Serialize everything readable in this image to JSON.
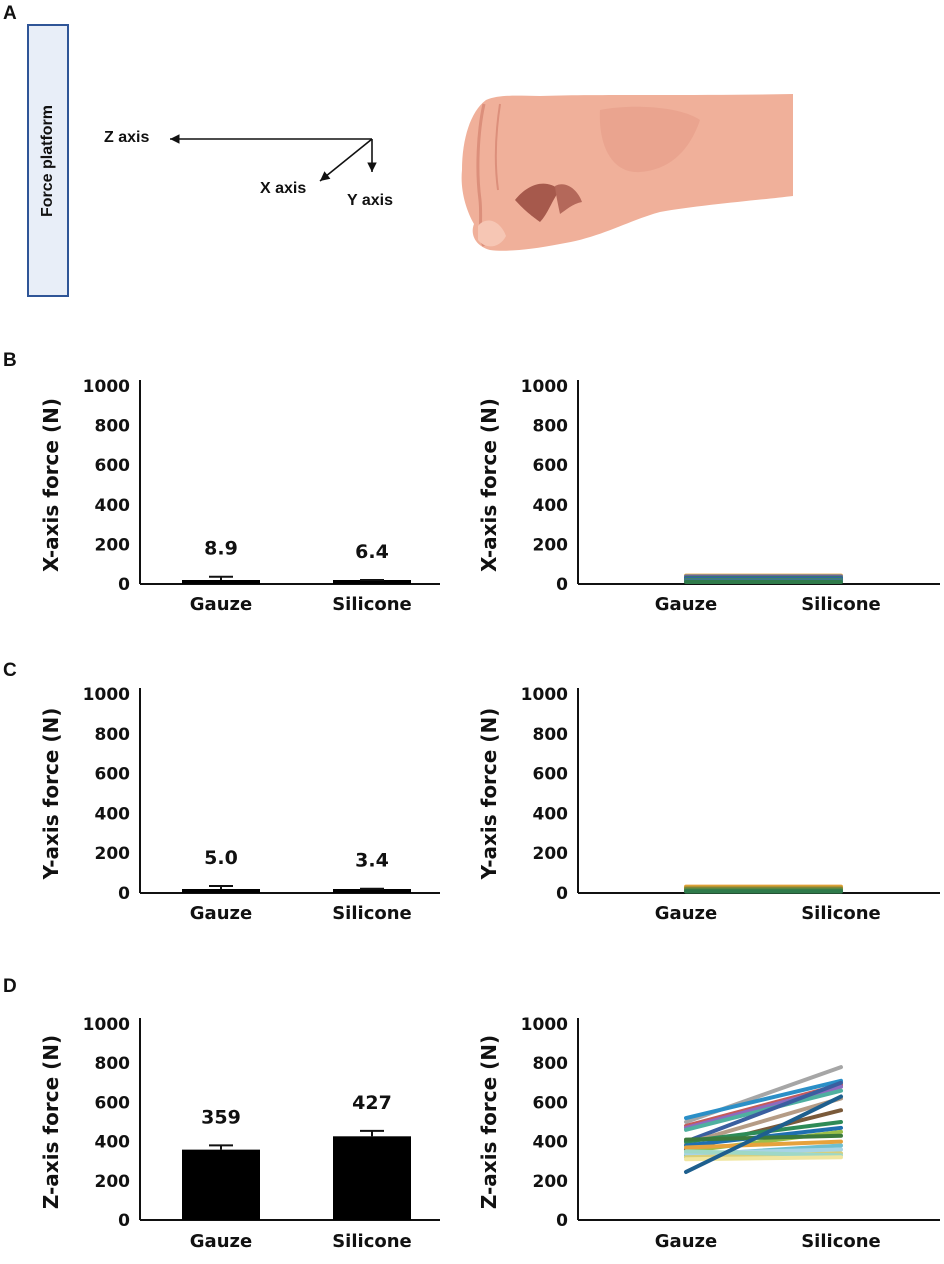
{
  "panels": {
    "a": "A",
    "b": "B",
    "c": "C",
    "d": "D"
  },
  "diagram": {
    "platform_label": "Force platform",
    "z_axis": "Z axis",
    "x_axis": "X axis",
    "y_axis": "Y axis"
  },
  "colors": {
    "bar": "#000000",
    "skin": "#f0b09a",
    "skin_dark": "#e59a86",
    "platform_border": "#2f5597",
    "platform_fill": "#e8eef8"
  },
  "chart_data": [
    {
      "id": "B-left",
      "type": "bar",
      "categories": [
        "Gauze",
        "Silicone"
      ],
      "values": [
        8.9,
        6.4
      ],
      "errors": [
        28,
        14
      ],
      "data_labels": [
        "8.9",
        "6.4"
      ],
      "ylabel": "X-axis force (N)",
      "ylim": [
        0,
        1000
      ],
      "yticks": [
        "0",
        "200",
        "400",
        "600",
        "800",
        "1000"
      ]
    },
    {
      "id": "B-right",
      "type": "line",
      "categories": [
        "Gauze",
        "Silicone"
      ],
      "series": [
        {
          "values": [
            42,
            42
          ],
          "color": "#e6a23c"
        },
        {
          "values": [
            38,
            38
          ],
          "color": "#4a7fbf"
        },
        {
          "values": [
            34,
            34
          ],
          "color": "#7a5c8e"
        },
        {
          "values": [
            30,
            30
          ],
          "color": "#2e7d6f"
        },
        {
          "values": [
            26,
            26
          ],
          "color": "#3d5a9e"
        },
        {
          "values": [
            22,
            22
          ],
          "color": "#2b6fb0"
        },
        {
          "values": [
            18,
            18
          ],
          "color": "#4e8f3a"
        },
        {
          "values": [
            14,
            14
          ],
          "color": "#3a6ea5"
        },
        {
          "values": [
            10,
            10
          ],
          "color": "#2f7a4a"
        }
      ],
      "ylabel": "X-axis force (N)",
      "ylim": [
        0,
        1000
      ],
      "yticks": [
        "0",
        "200",
        "400",
        "600",
        "800",
        "1000"
      ]
    },
    {
      "id": "C-left",
      "type": "bar",
      "categories": [
        "Gauze",
        "Silicone"
      ],
      "values": [
        5.0,
        3.4
      ],
      "errors": [
        30,
        18
      ],
      "data_labels": [
        "5.0",
        "3.4"
      ],
      "ylabel": "Y-axis force (N)",
      "ylim": [
        0,
        1000
      ],
      "yticks": [
        "0",
        "200",
        "400",
        "600",
        "800",
        "1000"
      ]
    },
    {
      "id": "C-right",
      "type": "line",
      "categories": [
        "Gauze",
        "Silicone"
      ],
      "series": [
        {
          "values": [
            32,
            32
          ],
          "color": "#e6a23c"
        },
        {
          "values": [
            27,
            27
          ],
          "color": "#c9a030"
        },
        {
          "values": [
            22,
            22
          ],
          "color": "#8a7f3a"
        },
        {
          "values": [
            17,
            17
          ],
          "color": "#6b8e3a"
        },
        {
          "values": [
            12,
            12
          ],
          "color": "#3f7f4a"
        },
        {
          "values": [
            7,
            7
          ],
          "color": "#2f7a4a"
        }
      ],
      "ylabel": "Y-axis force (N)",
      "ylim": [
        0,
        1000
      ],
      "yticks": [
        "0",
        "200",
        "400",
        "600",
        "800",
        "1000"
      ]
    },
    {
      "id": "D-left",
      "type": "bar",
      "categories": [
        "Gauze",
        "Silicone"
      ],
      "values": [
        359,
        427
      ],
      "errors": [
        22,
        28
      ],
      "data_labels": [
        "359",
        "427"
      ],
      "ylabel": "Z-axis force (N)",
      "ylim": [
        0,
        1000
      ],
      "yticks": [
        "0",
        "200",
        "400",
        "600",
        "800",
        "1000"
      ]
    },
    {
      "id": "D-right",
      "type": "line",
      "categories": [
        "Gauze",
        "Silicone"
      ],
      "series": [
        {
          "values": [
            500,
            780
          ],
          "color": "#a6a6a6"
        },
        {
          "values": [
            520,
            710
          ],
          "color": "#2b8fc7"
        },
        {
          "values": [
            480,
            690
          ],
          "color": "#c55a5a"
        },
        {
          "values": [
            470,
            680
          ],
          "color": "#8e6bbf"
        },
        {
          "values": [
            460,
            660
          ],
          "color": "#4fb0a0"
        },
        {
          "values": [
            400,
            700
          ],
          "color": "#3a5fa0"
        },
        {
          "values": [
            390,
            620
          ],
          "color": "#b59c86"
        },
        {
          "values": [
            360,
            560
          ],
          "color": "#7a5a3a"
        },
        {
          "values": [
            400,
            500
          ],
          "color": "#2e8b57"
        },
        {
          "values": [
            380,
            470
          ],
          "color": "#1f6fb0"
        },
        {
          "values": [
            350,
            450
          ],
          "color": "#9bbf4a"
        },
        {
          "values": [
            410,
            430
          ],
          "color": "#3c7a3c"
        },
        {
          "values": [
            370,
            400
          ],
          "color": "#e6a23c"
        },
        {
          "values": [
            330,
            380
          ],
          "color": "#6fbfd0"
        },
        {
          "values": [
            340,
            360
          ],
          "color": "#a8d4e6"
        },
        {
          "values": [
            320,
            340
          ],
          "color": "#d8cf7a"
        },
        {
          "values": [
            350,
            330
          ],
          "color": "#9fd8c6"
        },
        {
          "values": [
            310,
            320
          ],
          "color": "#f0e6a0"
        },
        {
          "values": [
            245,
            630
          ],
          "color": "#1e5f8e"
        }
      ],
      "ylabel": "Z-axis force (N)",
      "ylim": [
        0,
        1000
      ],
      "yticks": [
        "0",
        "200",
        "400",
        "600",
        "800",
        "1000"
      ]
    }
  ]
}
